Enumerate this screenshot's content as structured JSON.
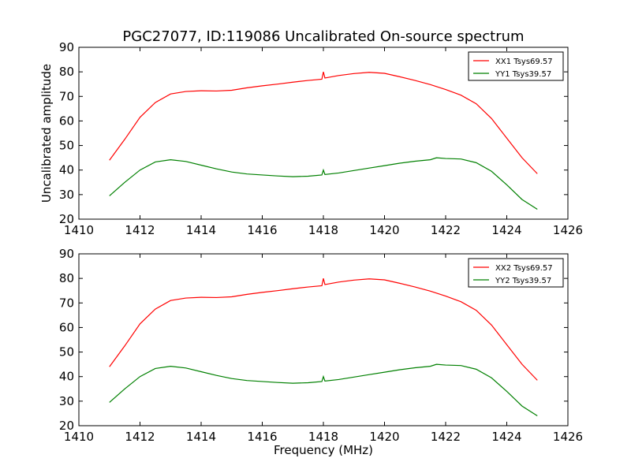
{
  "figure": {
    "title": "PGC27077, ID:119086 Uncalibrated On-source spectrum"
  },
  "chart_data": [
    {
      "type": "line",
      "title": "",
      "xlabel": "",
      "ylabel": "Uncalibrated amplitude",
      "xlim": [
        1410,
        1426
      ],
      "ylim": [
        20,
        90
      ],
      "xticks": [
        "1410",
        "1412",
        "1414",
        "1416",
        "1418",
        "1420",
        "1422",
        "1424",
        "1426"
      ],
      "yticks": [
        "20",
        "30",
        "40",
        "50",
        "60",
        "70",
        "80",
        "90"
      ],
      "grid": false,
      "legend_position": "top-right",
      "series": [
        {
          "name": "XX1 Tsys69.57",
          "color": "#ff0000",
          "x": [
            1411.0,
            1411.5,
            1412.0,
            1412.5,
            1413.0,
            1413.5,
            1414.0,
            1414.5,
            1415.0,
            1415.5,
            1416.0,
            1416.5,
            1417.0,
            1417.5,
            1417.95,
            1418.0,
            1418.05,
            1418.5,
            1419.0,
            1419.5,
            1420.0,
            1420.5,
            1421.0,
            1421.5,
            1422.0,
            1422.5,
            1423.0,
            1423.5,
            1424.0,
            1424.5,
            1425.0
          ],
          "y": [
            44.0,
            52.5,
            61.5,
            67.5,
            71.0,
            72.0,
            72.3,
            72.2,
            72.5,
            73.5,
            74.3,
            75.0,
            75.8,
            76.5,
            77.0,
            80.0,
            77.5,
            78.5,
            79.3,
            79.8,
            79.4,
            78.0,
            76.5,
            74.8,
            72.8,
            70.5,
            67.0,
            61.0,
            53.0,
            45.0,
            38.5
          ]
        },
        {
          "name": "YY1 Tsys39.57",
          "color": "#008000",
          "x": [
            1411.0,
            1411.5,
            1412.0,
            1412.5,
            1413.0,
            1413.5,
            1414.0,
            1414.5,
            1415.0,
            1415.5,
            1416.0,
            1416.5,
            1417.0,
            1417.5,
            1417.95,
            1418.0,
            1418.05,
            1418.5,
            1419.0,
            1419.5,
            1420.0,
            1420.5,
            1421.0,
            1421.5,
            1421.7,
            1422.0,
            1422.5,
            1423.0,
            1423.5,
            1424.0,
            1424.5,
            1425.0
          ],
          "y": [
            29.5,
            35.0,
            40.0,
            43.3,
            44.2,
            43.5,
            42.0,
            40.5,
            39.2,
            38.4,
            38.0,
            37.6,
            37.3,
            37.5,
            38.0,
            40.0,
            38.2,
            38.8,
            39.8,
            40.8,
            41.8,
            42.8,
            43.6,
            44.2,
            45.0,
            44.7,
            44.5,
            43.0,
            39.5,
            34.0,
            28.0,
            24.0
          ]
        }
      ]
    },
    {
      "type": "line",
      "title": "",
      "xlabel": "Frequency (MHz)",
      "ylabel": "",
      "xlim": [
        1410,
        1426
      ],
      "ylim": [
        20,
        90
      ],
      "xticks": [
        "1410",
        "1412",
        "1414",
        "1416",
        "1418",
        "1420",
        "1422",
        "1424",
        "1426"
      ],
      "yticks": [
        "20",
        "30",
        "40",
        "50",
        "60",
        "70",
        "80",
        "90"
      ],
      "grid": false,
      "legend_position": "top-right",
      "series": [
        {
          "name": "XX2 Tsys69.57",
          "color": "#ff0000",
          "x": [
            1411.0,
            1411.5,
            1412.0,
            1412.5,
            1413.0,
            1413.5,
            1414.0,
            1414.5,
            1415.0,
            1415.5,
            1416.0,
            1416.5,
            1417.0,
            1417.5,
            1417.95,
            1418.0,
            1418.05,
            1418.5,
            1419.0,
            1419.5,
            1420.0,
            1420.5,
            1421.0,
            1421.5,
            1422.0,
            1422.5,
            1423.0,
            1423.5,
            1424.0,
            1424.5,
            1425.0
          ],
          "y": [
            44.0,
            52.5,
            61.5,
            67.5,
            71.0,
            72.0,
            72.3,
            72.2,
            72.5,
            73.5,
            74.3,
            75.0,
            75.8,
            76.5,
            77.0,
            80.0,
            77.5,
            78.5,
            79.3,
            79.8,
            79.4,
            78.0,
            76.5,
            74.8,
            72.8,
            70.5,
            67.0,
            61.0,
            53.0,
            45.0,
            38.5
          ]
        },
        {
          "name": "YY2 Tsys39.57",
          "color": "#008000",
          "x": [
            1411.0,
            1411.5,
            1412.0,
            1412.5,
            1413.0,
            1413.5,
            1414.0,
            1414.5,
            1415.0,
            1415.5,
            1416.0,
            1416.5,
            1417.0,
            1417.5,
            1417.95,
            1418.0,
            1418.05,
            1418.5,
            1419.0,
            1419.5,
            1420.0,
            1420.5,
            1421.0,
            1421.5,
            1421.7,
            1422.0,
            1422.5,
            1423.0,
            1423.5,
            1424.0,
            1424.5,
            1425.0
          ],
          "y": [
            29.5,
            35.0,
            40.0,
            43.3,
            44.2,
            43.5,
            42.0,
            40.5,
            39.2,
            38.4,
            38.0,
            37.6,
            37.3,
            37.5,
            38.0,
            40.0,
            38.2,
            38.8,
            39.8,
            40.8,
            41.8,
            42.8,
            43.6,
            44.2,
            45.0,
            44.7,
            44.5,
            43.0,
            39.5,
            34.0,
            28.0,
            24.0
          ]
        }
      ]
    }
  ]
}
